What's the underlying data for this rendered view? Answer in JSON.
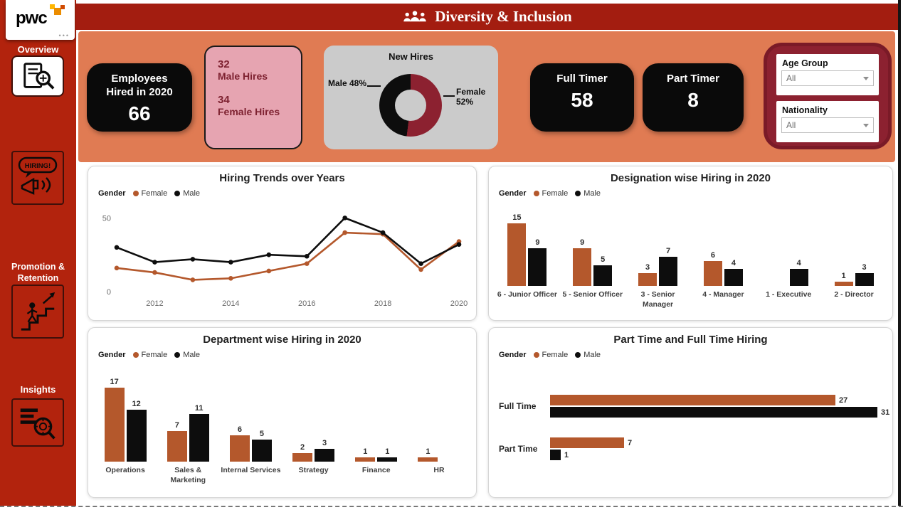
{
  "logo": {
    "text": "pwc",
    "more_options": "•••"
  },
  "header": {
    "title": "Diversity & Inclusion"
  },
  "sidebar": {
    "items": [
      {
        "label": "Overview"
      },
      {
        "label": "",
        "bubble_text": "HIRING!"
      },
      {
        "label": "Promotion & Retention"
      },
      {
        "label": "Insights"
      }
    ]
  },
  "kpis": {
    "employees": {
      "title": "Employees Hired in 2020",
      "value": "66"
    },
    "gender": {
      "male_value": "32",
      "male_label": "Male Hires",
      "female_value": "34",
      "female_label": "Female Hires"
    },
    "full_timer": {
      "title": "Full Timer",
      "value": "58"
    },
    "part_timer": {
      "title": "Part Timer",
      "value": "8"
    }
  },
  "filters": {
    "age_group": {
      "label": "Age Group",
      "value": "All"
    },
    "nationality": {
      "label": "Nationality",
      "value": "All"
    }
  },
  "colors": {
    "female": "#B4582C",
    "male": "#0D0D0D",
    "sidebar_red": "#B2230D",
    "header_red": "#A31D10",
    "band_salmon": "#E07B53",
    "wine": "#8C2130",
    "pink_card": "#E6A4B1",
    "gray_card": "#CBCBCB"
  },
  "chart_data": [
    {
      "id": "new-hires",
      "type": "pie",
      "title": "New Hires",
      "labels": [
        "Male",
        "Female"
      ],
      "values": [
        48,
        52
      ],
      "unit": "%",
      "colors": [
        "#0D0D0D",
        "#8C2130"
      ],
      "callouts": [
        "Male 48%",
        "Female 52%"
      ],
      "donut": true
    },
    {
      "id": "hiring-trends",
      "type": "line",
      "title": "Hiring Trends over Years",
      "legend_label": "Gender",
      "legend_position": "top-left",
      "x": [
        2011,
        2012,
        2013,
        2014,
        2015,
        2016,
        2017,
        2018,
        2019,
        2020
      ],
      "xticks": [
        2012,
        2014,
        2016,
        2018,
        2020
      ],
      "series": [
        {
          "name": "Female",
          "color": "#B4582C",
          "values": [
            16,
            13,
            8,
            9,
            14,
            19,
            40,
            39,
            15,
            34
          ]
        },
        {
          "name": "Male",
          "color": "#0D0D0D",
          "values": [
            30,
            20,
            22,
            20,
            25,
            24,
            50,
            40,
            19,
            32
          ]
        }
      ],
      "ylim": [
        0,
        55
      ],
      "yticks": [
        0,
        50
      ],
      "grid": false
    },
    {
      "id": "designation-hiring",
      "type": "bar",
      "title": "Designation wise Hiring in 2020",
      "legend_label": "Gender",
      "categories": [
        "6 - Junior Officer",
        "5 - Senior Officer",
        "3 - Senior Manager",
        "4 - Manager",
        "1 - Executive",
        "2 - Director"
      ],
      "series": [
        {
          "name": "Female",
          "color": "#B4582C",
          "values": [
            15,
            9,
            3,
            6,
            0,
            1
          ]
        },
        {
          "name": "Male",
          "color": "#0D0D0D",
          "values": [
            9,
            5,
            7,
            4,
            4,
            3
          ]
        }
      ],
      "ymax": 16,
      "data_labels": true
    },
    {
      "id": "department-hiring",
      "type": "bar",
      "title": "Department wise Hiring in 2020",
      "legend_label": "Gender",
      "categories": [
        "Operations",
        "Sales & Marketing",
        "Internal Services",
        "Strategy",
        "Finance",
        "HR"
      ],
      "series": [
        {
          "name": "Female",
          "color": "#B4582C",
          "values": [
            17,
            7,
            6,
            2,
            1,
            1
          ]
        },
        {
          "name": "Male",
          "color": "#0D0D0D",
          "values": [
            12,
            11,
            5,
            3,
            1,
            0
          ]
        }
      ],
      "ymax": 18,
      "data_labels": true
    },
    {
      "id": "parttime-fulltime",
      "type": "hbar",
      "title": "Part Time and Full Time Hiring",
      "legend_label": "Gender",
      "categories": [
        "Full Time",
        "Part Time"
      ],
      "series": [
        {
          "name": "Female",
          "color": "#B4582C",
          "values": [
            27,
            7
          ]
        },
        {
          "name": "Male",
          "color": "#0D0D0D",
          "values": [
            31,
            1
          ]
        }
      ],
      "xmax": 31,
      "data_labels": true
    }
  ]
}
